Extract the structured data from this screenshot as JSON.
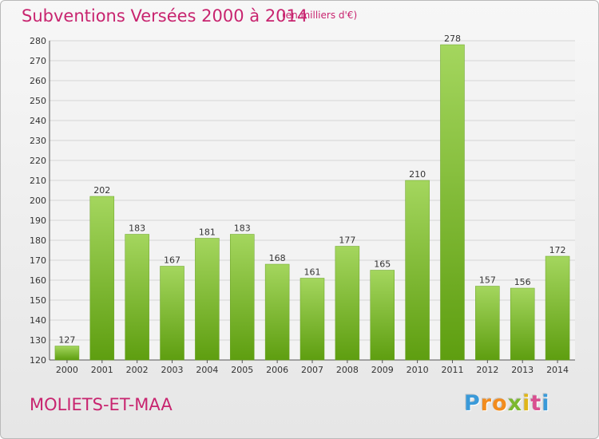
{
  "header": {
    "title": "Subventions Versées 2000 à 2014",
    "unit": "(en milliers d'€)"
  },
  "footer": {
    "commune": "MOLIETS-ET-MAA"
  },
  "logo": {
    "letters": [
      "P",
      "r",
      "o",
      "x",
      "i",
      "t",
      "i"
    ],
    "colors": [
      "#3a9ad9",
      "#f28c1e",
      "#f28c1e",
      "#7cb82f",
      "#e0b619",
      "#d94f90",
      "#3a9ad9"
    ]
  },
  "colors": {
    "bar_light": "#a4d65e",
    "bar_dark": "#5e9e10",
    "grid": "#d5d5d5",
    "accent": "#c8246f"
  },
  "chart_data": {
    "type": "bar",
    "title": "Subventions Versées 2000 à 2014",
    "categories": [
      "2000",
      "2001",
      "2002",
      "2003",
      "2004",
      "2005",
      "2006",
      "2007",
      "2008",
      "2009",
      "2010",
      "2011",
      "2012",
      "2013",
      "2014"
    ],
    "values": [
      127,
      202,
      183,
      167,
      181,
      183,
      168,
      161,
      177,
      165,
      210,
      278,
      157,
      156,
      172
    ],
    "ylim": [
      120,
      280
    ],
    "yticks": [
      120,
      130,
      140,
      150,
      160,
      170,
      180,
      190,
      200,
      210,
      220,
      230,
      240,
      250,
      260,
      270,
      280
    ],
    "grid": true,
    "xlabel": "",
    "ylabel": ""
  }
}
